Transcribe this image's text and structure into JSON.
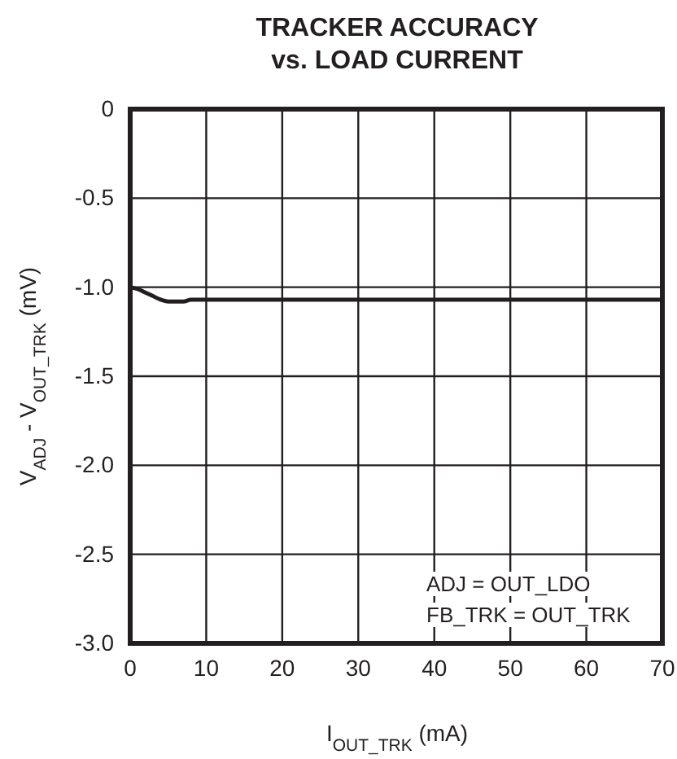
{
  "chart_data": {
    "type": "line",
    "title": "TRACKER ACCURACY\nvs. LOAD CURRENT",
    "xlabel": "I$_{OUT_TRK}$ (mA)",
    "ylabel": "V$_{ADJ}$ - V$_{OUT_TRK}$ (mV)",
    "annotations": [
      "ADJ = OUT_LDO",
      "FB_TRK = OUT_TRK"
    ],
    "series": [
      {
        "color": "#231f20",
        "x": [
          0,
          1,
          2,
          3,
          4,
          5,
          6,
          7,
          8,
          9,
          10,
          20,
          30,
          40,
          50,
          60,
          70
        ],
        "values": [
          -1.0,
          -1.01,
          -1.03,
          -1.05,
          -1.07,
          -1.08,
          -1.08,
          -1.08,
          -1.07,
          -1.07,
          -1.07,
          -1.07,
          -1.07,
          -1.07,
          -1.07,
          -1.07,
          -1.07
        ]
      }
    ],
    "xlim": [
      0,
      70
    ],
    "xticks": [
      0,
      10,
      20,
      30,
      40,
      50,
      60,
      70
    ],
    "ylim": [
      -3.0,
      0
    ],
    "yticks": [
      {
        "value": -3,
        "label": "-3.0"
      },
      {
        "value": -2.5,
        "label": "-2.5"
      },
      {
        "value": -2,
        "label": "-2.0"
      },
      {
        "value": -1.5,
        "label": "-1.5"
      },
      {
        "value": -1,
        "label": "-1.0"
      },
      -0.5,
      0
    ],
    "grid": true,
    "marker": "none",
    "line_style": "solid"
  }
}
